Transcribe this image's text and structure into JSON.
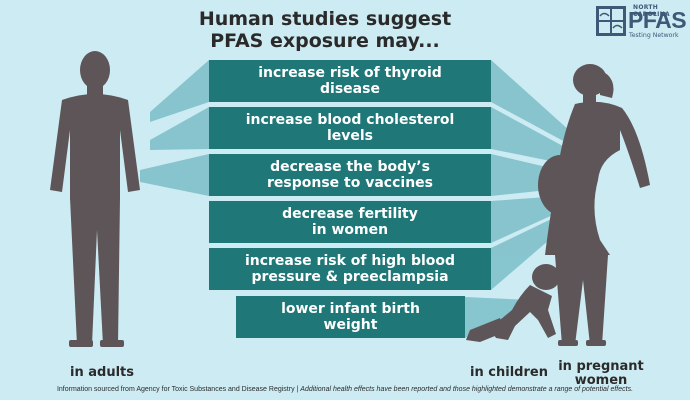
{
  "title_line1": "Human studies suggest",
  "title_line2": "PFAS exposure may...",
  "logo": {
    "tagline": "NORTH CAROLINA",
    "name": "PFAS",
    "subtitle": "Testing Network"
  },
  "effects": [
    "increase risk of thyroid\ndisease",
    "increase blood cholesterol\nlevels",
    "decrease the body’s\nresponse to vaccines",
    "decrease fertility\nin women",
    "increase risk of high blood\npressure & preeclampsia",
    "lower infant birth\nweight"
  ],
  "captions": {
    "adults": "in adults",
    "children": "in children",
    "pregnant": "in pregnant\nwomen"
  },
  "footer": {
    "source": "Information sourced from Agency for Toxic Substances and Disease Registry | ",
    "note": "Additional health effects have been reported and those highlighted demonstrate a range of potential effects."
  },
  "colors": {
    "background": "#cdebf3",
    "panel": "#1f7778",
    "silhouette": "#5e5558",
    "ray": "#4fa6b1"
  }
}
